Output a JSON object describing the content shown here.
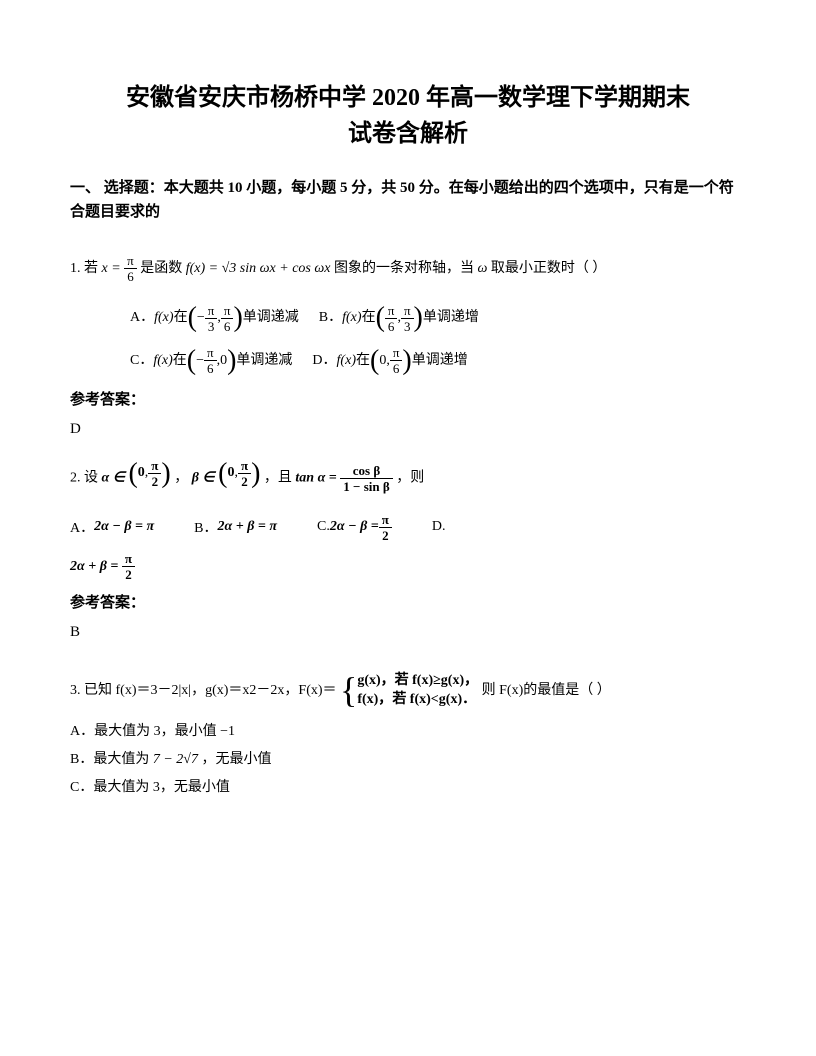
{
  "title_line1": "安徽省安庆市杨桥中学 2020 年高一数学理下学期期末",
  "title_line2": "试卷含解析",
  "section_heading": "一、 选择题：本大题共 10 小题，每小题 5 分，共 50 分。在每小题给出的四个选项中，只有是一个符合题目要求的",
  "q1": {
    "prefix": "1. 若 ",
    "expr1_left": "x = ",
    "expr1_frac_num": "π",
    "expr1_frac_den": "6",
    "mid1": " 是函数 ",
    "fx": "f(x) = √3 sin ωx + cos ωx",
    "mid2": " 图象的一条对称轴，当 ",
    "omega": "ω",
    "mid3": " 取最小正数时（    ）",
    "optA_prefix": "A．",
    "optA_fx": "f(x)",
    "optA_in": " 在 ",
    "optA_interval_a": "−",
    "optA_interval_a_num": "π",
    "optA_interval_a_den": "3",
    "optA_interval_b_num": "π",
    "optA_interval_b_den": "6",
    "optA_suffix": " 单调递减",
    "optB_prefix": "B．",
    "optB_fx": "f(x)",
    "optB_in": " 在 ",
    "optB_interval_a_num": "π",
    "optB_interval_a_den": "6",
    "optB_interval_b_num": "π",
    "optB_interval_b_den": "3",
    "optB_suffix": " 单调递增",
    "optC_prefix": "C．",
    "optC_fx": "f(x)",
    "optC_in": " 在 ",
    "optC_interval_a_num": "π",
    "optC_interval_a_den": "6",
    "optC_interval_b": "0",
    "optC_suffix": " 单调递减",
    "optD_prefix": "D．",
    "optD_fx": "f(x)",
    "optD_in": " 在 ",
    "optD_interval_a": "0",
    "optD_interval_b_num": "π",
    "optD_interval_b_den": "6",
    "optD_suffix": " 单调递增",
    "answer_label": "参考答案：",
    "answer": "D"
  },
  "q2": {
    "prefix": "2. 设 ",
    "alpha_in": "α ∈",
    "interval1_a": "0",
    "interval1_b_num": "π",
    "interval1_b_den": "2",
    "sep1": "，",
    "beta_in": "β ∈",
    "interval2_a": "0",
    "interval2_b_num": "π",
    "interval2_b_den": "2",
    "sep2": "，且 ",
    "tan_expr": "tan α = ",
    "frac_num": "cos β",
    "frac_den": "1 − sin β",
    "suffix": "，则",
    "optA": "A．",
    "optA_expr": "2α − β = π",
    "optB": "B．",
    "optB_expr": "2α + β = π",
    "optC": "C.",
    "optC_expr_left": "2α − β = ",
    "optC_num": "π",
    "optC_den": "2",
    "optD": "D.",
    "optD_expr_left": "2α + β = ",
    "optD_num": "π",
    "optD_den": "2",
    "answer_label": "参考答案：",
    "answer": "B"
  },
  "q3": {
    "prefix": "3. 已知 f(x)＝3－2|x|，g(x)＝x2－2x，F(x)＝",
    "brace_line1_a": "g(x)，",
    "brace_line1_b": "若 f(x)≥g(x)，",
    "brace_line2_a": "f(x)，",
    "brace_line2_b": "若 f(x)<g(x)．",
    "suffix": "则 F(x)的最值是（    ）",
    "optA": "A．最大值为 3，最小值 −1",
    "optB_prefix": "B．最大值为 ",
    "optB_expr": "7 − 2√7",
    "optB_suffix": "，无最小值",
    "optC": "C．最大值为 3，无最小值"
  }
}
